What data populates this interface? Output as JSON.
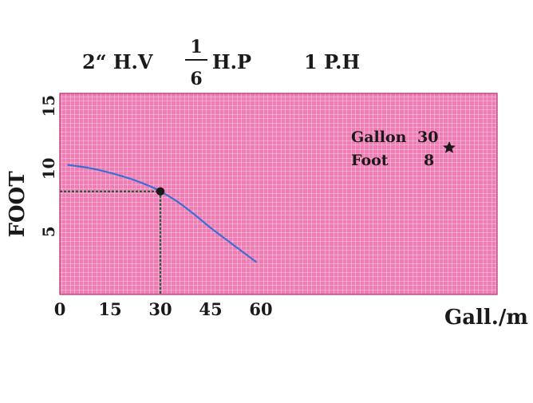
{
  "header": {
    "size": "2“ H.V",
    "hp_numerator": "1",
    "hp_denominator": "6",
    "hp_unit": "H.P",
    "phase": "1 P.H"
  },
  "chart_data": {
    "type": "line",
    "xlabel": "Gall./m",
    "ylabel": "FOOT",
    "xlim": [
      0,
      60
    ],
    "ylim": [
      0,
      16
    ],
    "x_ticks": [
      "0",
      "15",
      "30",
      "45",
      "60"
    ],
    "y_ticks": [
      "5",
      "10",
      "15"
    ],
    "grid": true,
    "background_color": "#f07cb4",
    "grid_color": "#ffffff",
    "curve_color": "#3a6fd6",
    "guide_color": "#1f5f3a",
    "series": [
      {
        "x": [
          2.5,
          10,
          20,
          27,
          30,
          35,
          40,
          45,
          50,
          55,
          58.5
        ],
        "y": [
          10.3,
          10.0,
          9.3,
          8.6,
          8.2,
          7.4,
          6.4,
          5.3,
          4.3,
          3.3,
          2.6
        ]
      }
    ],
    "operating_point": {
      "x": 30,
      "y": 8.2
    },
    "annotation": {
      "gallon_label": "Gallon",
      "gallon_value": "30",
      "foot_label": "Foot",
      "foot_value": "8",
      "marker": "star-icon"
    }
  }
}
